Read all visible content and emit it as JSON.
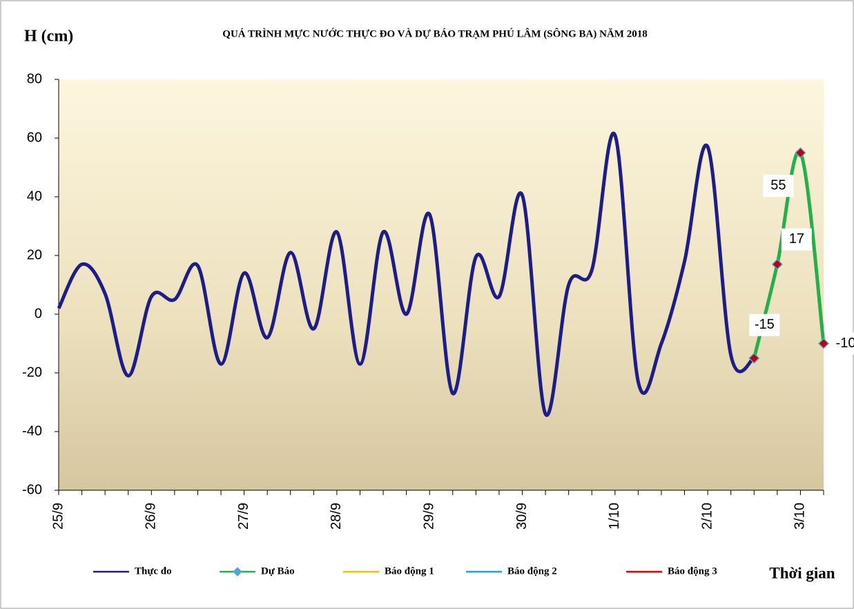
{
  "chart_data": {
    "type": "line",
    "title": "QUÁ TRÌNH MỰC NƯỚC THỰC ĐO VÀ DỰ BÁO TRẠM PHÚ LÂM (SÔNG BA) NĂM 2018",
    "y_label": "H (cm)",
    "x_label": "Thời gian",
    "categories": [
      "25/9",
      null,
      null,
      null,
      "26/9",
      null,
      null,
      null,
      "27/9",
      null,
      null,
      null,
      "28/9",
      null,
      null,
      null,
      "29/9",
      null,
      null,
      null,
      "30/9",
      null,
      null,
      null,
      "1/10",
      null,
      null,
      null,
      "2/10",
      null,
      null,
      null,
      "3/10",
      null
    ],
    "series": [
      {
        "name": "Thực đo",
        "color": "#1c1c8c",
        "values": [
          2,
          17,
          7,
          -21,
          6,
          5,
          16.5,
          -17,
          14,
          -8,
          21,
          -5,
          28,
          -17,
          28,
          0,
          34,
          -27,
          19.5,
          6,
          40.5,
          -34,
          10,
          15,
          61,
          -23,
          -10,
          18,
          57,
          -14,
          -15,
          null,
          null,
          null
        ]
      },
      {
        "name": "Dự Báo",
        "color": "#22b04a",
        "marker_color": "#c00000",
        "marker_edge": "#4aa8d8",
        "values": [
          null,
          null,
          null,
          null,
          null,
          null,
          null,
          null,
          null,
          null,
          null,
          null,
          null,
          null,
          null,
          null,
          null,
          null,
          null,
          null,
          null,
          null,
          null,
          null,
          null,
          null,
          null,
          null,
          null,
          null,
          -15,
          17,
          55,
          -10
        ]
      },
      {
        "name": "Báo động 1",
        "color": "#f5c400",
        "values": [
          null,
          null,
          null,
          null,
          null,
          null,
          null,
          null,
          null,
          null,
          null,
          null,
          null,
          null,
          null,
          null,
          null,
          null,
          null,
          null,
          null,
          null,
          null,
          null,
          null,
          null,
          null,
          null,
          null,
          null,
          null,
          null,
          null,
          null
        ]
      },
      {
        "name": "Báo động 2",
        "color": "#1aa6e0",
        "values": [
          null,
          null,
          null,
          null,
          null,
          null,
          null,
          null,
          null,
          null,
          null,
          null,
          null,
          null,
          null,
          null,
          null,
          null,
          null,
          null,
          null,
          null,
          null,
          null,
          null,
          null,
          null,
          null,
          null,
          null,
          null,
          null,
          null,
          null
        ]
      },
      {
        "name": "Báo động 3",
        "color": "#e00000",
        "values": [
          null,
          null,
          null,
          null,
          null,
          null,
          null,
          null,
          null,
          null,
          null,
          null,
          null,
          null,
          null,
          null,
          null,
          null,
          null,
          null,
          null,
          null,
          null,
          null,
          null,
          null,
          null,
          null,
          null,
          null,
          null,
          null,
          null,
          null
        ]
      }
    ],
    "ylim": [
      -60,
      80
    ],
    "yticks": [
      -60,
      -40,
      -20,
      0,
      20,
      40,
      60,
      80
    ],
    "grid": false,
    "legend": "bottom"
  }
}
